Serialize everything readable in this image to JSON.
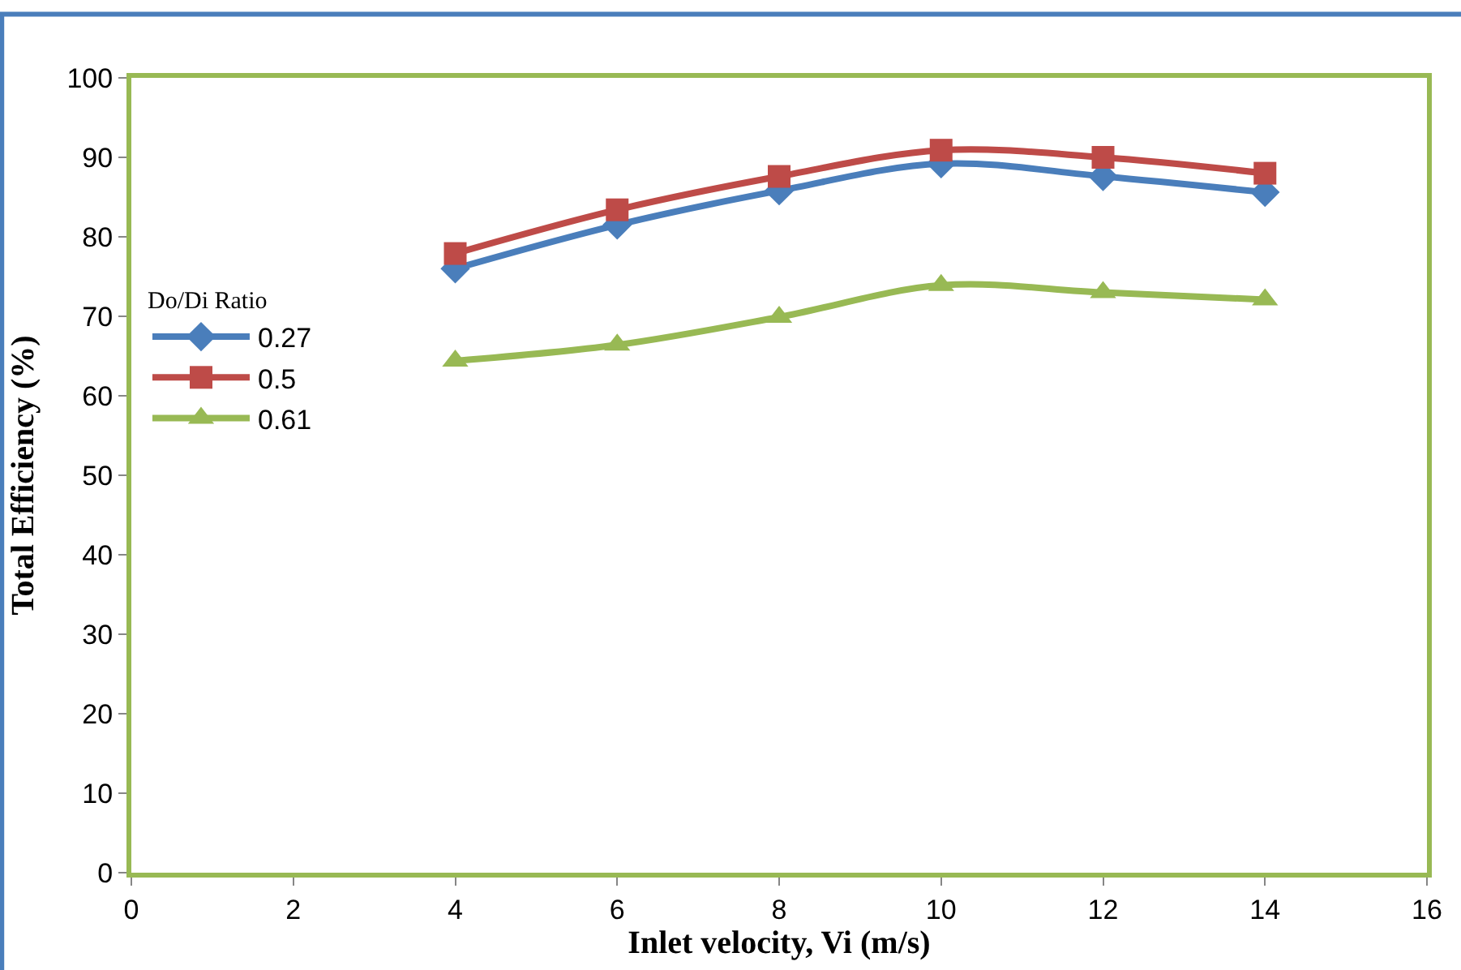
{
  "chart_data": {
    "type": "line",
    "xlabel": "Inlet velocity, Vi (m/s)",
    "ylabel": "Total Efficiency (%)",
    "legend_title": "Do/Di Ratio",
    "legend": "left",
    "xlim": [
      0,
      16
    ],
    "xticks": [
      0,
      2,
      4,
      6,
      8,
      10,
      12,
      14,
      16
    ],
    "ylim": [
      0,
      100
    ],
    "yticks": [
      0,
      10,
      20,
      30,
      40,
      50,
      60,
      70,
      80,
      90,
      100
    ],
    "x": [
      4,
      6,
      8,
      10,
      12,
      14
    ],
    "series": [
      {
        "name": "0.27",
        "color": "#4a7ebb",
        "marker": "diamond",
        "values": [
          76,
          81.5,
          85.8,
          89.2,
          87.6,
          85.6
        ]
      },
      {
        "name": "0.5",
        "color": "#be4b48",
        "marker": "square",
        "values": [
          77.9,
          83.4,
          87.6,
          90.9,
          90,
          88
        ]
      },
      {
        "name": "0.61",
        "color": "#98b954",
        "marker": "triangle",
        "values": [
          64.4,
          66.4,
          69.9,
          73.9,
          73,
          72.1
        ]
      }
    ]
  }
}
